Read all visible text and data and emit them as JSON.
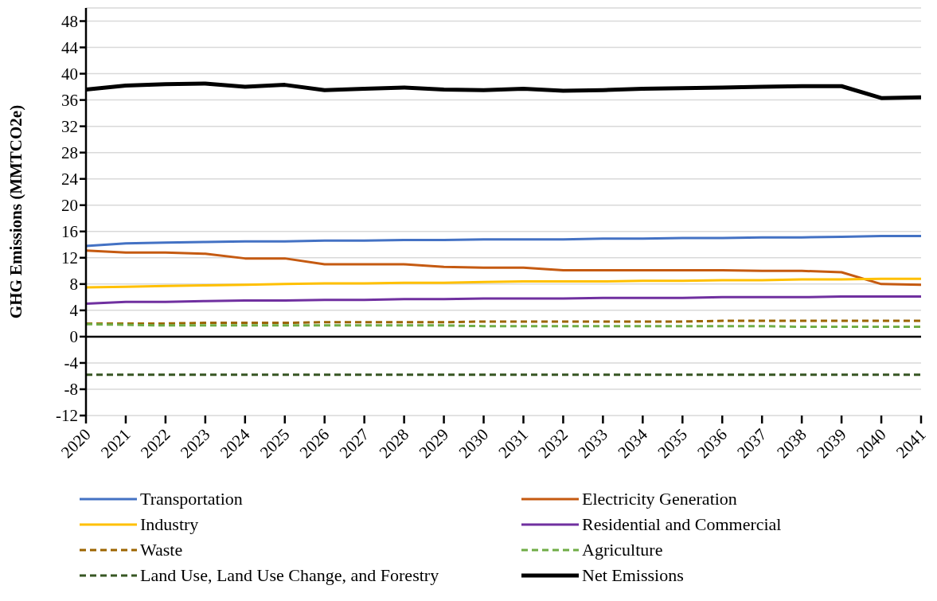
{
  "chart_data": {
    "type": "line",
    "ylabel": "GHG Emissions (MMTCO2e)",
    "categories": [
      "2020",
      "2021",
      "2022",
      "2023",
      "2024",
      "2025",
      "2026",
      "2027",
      "2028",
      "2029",
      "2030",
      "2031",
      "2032",
      "2033",
      "2034",
      "2035",
      "2036",
      "2037",
      "2038",
      "2039",
      "2040",
      "2041"
    ],
    "series": [
      {
        "name": "Transportation",
        "color": "#4472c4",
        "values": [
          13.8,
          14.2,
          14.3,
          14.4,
          14.5,
          14.5,
          14.6,
          14.6,
          14.7,
          14.7,
          14.8,
          14.8,
          14.8,
          14.9,
          14.9,
          15.0,
          15.0,
          15.1,
          15.1,
          15.2,
          15.3,
          15.3
        ]
      },
      {
        "name": "Electricity Generation",
        "color": "#c55a11",
        "values": [
          13.1,
          12.8,
          12.8,
          12.6,
          11.9,
          11.9,
          11.0,
          11.0,
          11.0,
          10.6,
          10.5,
          10.5,
          10.1,
          10.1,
          10.1,
          10.1,
          10.1,
          10.0,
          10.0,
          9.8,
          8.0,
          7.9
        ]
      },
      {
        "name": "Industry",
        "color": "#ffc000",
        "values": [
          7.5,
          7.6,
          7.7,
          7.8,
          7.9,
          8.0,
          8.1,
          8.1,
          8.2,
          8.2,
          8.3,
          8.4,
          8.4,
          8.4,
          8.5,
          8.5,
          8.6,
          8.6,
          8.7,
          8.7,
          8.8,
          8.8
        ]
      },
      {
        "name": "Residential and Commercial",
        "color": "#7030a0",
        "values": [
          5.0,
          5.3,
          5.3,
          5.4,
          5.5,
          5.5,
          5.6,
          5.6,
          5.7,
          5.7,
          5.8,
          5.8,
          5.8,
          5.9,
          5.9,
          5.9,
          6.0,
          6.0,
          6.0,
          6.1,
          6.1,
          6.1
        ]
      },
      {
        "name": "Waste",
        "color": "#9c6500",
        "line_style": "dashed",
        "values": [
          2.0,
          2.0,
          2.0,
          2.1,
          2.1,
          2.1,
          2.2,
          2.2,
          2.2,
          2.2,
          2.3,
          2.3,
          2.3,
          2.3,
          2.3,
          2.3,
          2.4,
          2.4,
          2.4,
          2.4,
          2.4,
          2.4
        ]
      },
      {
        "name": "Agriculture",
        "color": "#70ad47",
        "line_style": "dashed",
        "values": [
          1.9,
          1.8,
          1.7,
          1.7,
          1.7,
          1.7,
          1.7,
          1.7,
          1.7,
          1.7,
          1.6,
          1.6,
          1.6,
          1.6,
          1.6,
          1.6,
          1.6,
          1.6,
          1.5,
          1.5,
          1.5,
          1.5
        ]
      },
      {
        "name": "Land Use, Land Use Change, and Forestry",
        "color": "#375623",
        "line_style": "dashed",
        "values": [
          -5.8,
          -5.8,
          -5.8,
          -5.8,
          -5.8,
          -5.8,
          -5.8,
          -5.8,
          -5.8,
          -5.8,
          -5.8,
          -5.8,
          -5.8,
          -5.8,
          -5.8,
          -5.8,
          -5.8,
          -5.8,
          -5.8,
          -5.8,
          -5.8,
          -5.8
        ]
      },
      {
        "name": "Net Emissions",
        "color": "#000000",
        "values": [
          37.6,
          38.2,
          38.4,
          38.5,
          38.0,
          38.3,
          37.5,
          37.7,
          37.9,
          37.6,
          37.5,
          37.7,
          37.4,
          37.5,
          37.7,
          37.8,
          37.9,
          38.0,
          38.1,
          38.1,
          36.3,
          36.4
        ]
      }
    ],
    "ylim": [
      -12,
      50
    ],
    "yticks": [
      -12,
      -8,
      -4,
      0,
      4,
      8,
      12,
      16,
      20,
      24,
      28,
      32,
      36,
      40,
      44,
      48
    ],
    "grid": "y",
    "legend": "bottom",
    "marker": "none",
    "line_style": "solid"
  }
}
